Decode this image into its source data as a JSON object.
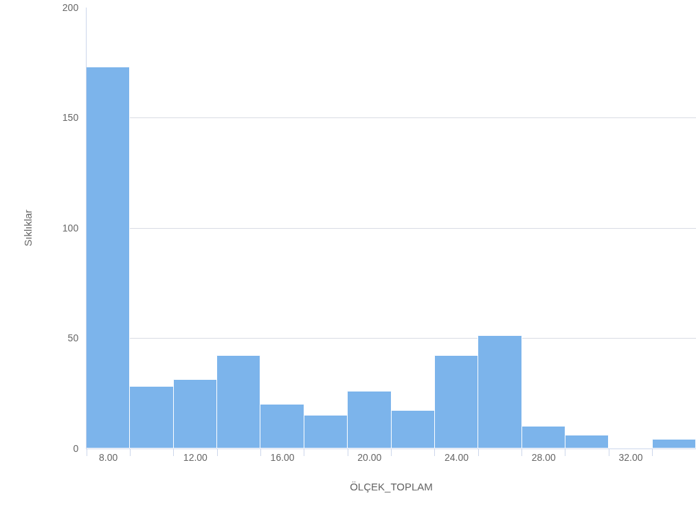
{
  "chart_data": {
    "type": "histogram",
    "xlabel": "ÖLÇEK_TOPLAM",
    "ylabel": "Sıklıklar",
    "bins": [
      7,
      9,
      11,
      13,
      15,
      17,
      19,
      21,
      23,
      25,
      27,
      29,
      31,
      33,
      35
    ],
    "values": [
      173,
      28,
      31,
      42,
      20,
      15,
      26,
      17,
      42,
      51,
      10,
      6,
      0,
      4
    ],
    "color": "#7cb4eb",
    "xlim": [
      7,
      35
    ],
    "xticks": [
      {
        "value": 7,
        "label": null
      },
      {
        "value": 8,
        "label": "8.00"
      },
      {
        "value": 9,
        "label": null
      },
      {
        "value": 11,
        "label": null
      },
      {
        "value": 12,
        "label": "12.00"
      },
      {
        "value": 13,
        "label": null
      },
      {
        "value": 15,
        "label": null
      },
      {
        "value": 16,
        "label": "16.00"
      },
      {
        "value": 17,
        "label": null
      },
      {
        "value": 19,
        "label": null
      },
      {
        "value": 20,
        "label": "20.00"
      },
      {
        "value": 21,
        "label": null
      },
      {
        "value": 23,
        "label": null
      },
      {
        "value": 24,
        "label": "24.00"
      },
      {
        "value": 25,
        "label": null
      },
      {
        "value": 27,
        "label": null
      },
      {
        "value": 28,
        "label": "28.00"
      },
      {
        "value": 29,
        "label": null
      },
      {
        "value": 31,
        "label": null
      },
      {
        "value": 32,
        "label": "32.00"
      },
      {
        "value": 33,
        "label": null
      }
    ],
    "ylim": [
      0,
      200
    ],
    "yticks": [
      0,
      50,
      100,
      150,
      200
    ],
    "grid": "y"
  }
}
